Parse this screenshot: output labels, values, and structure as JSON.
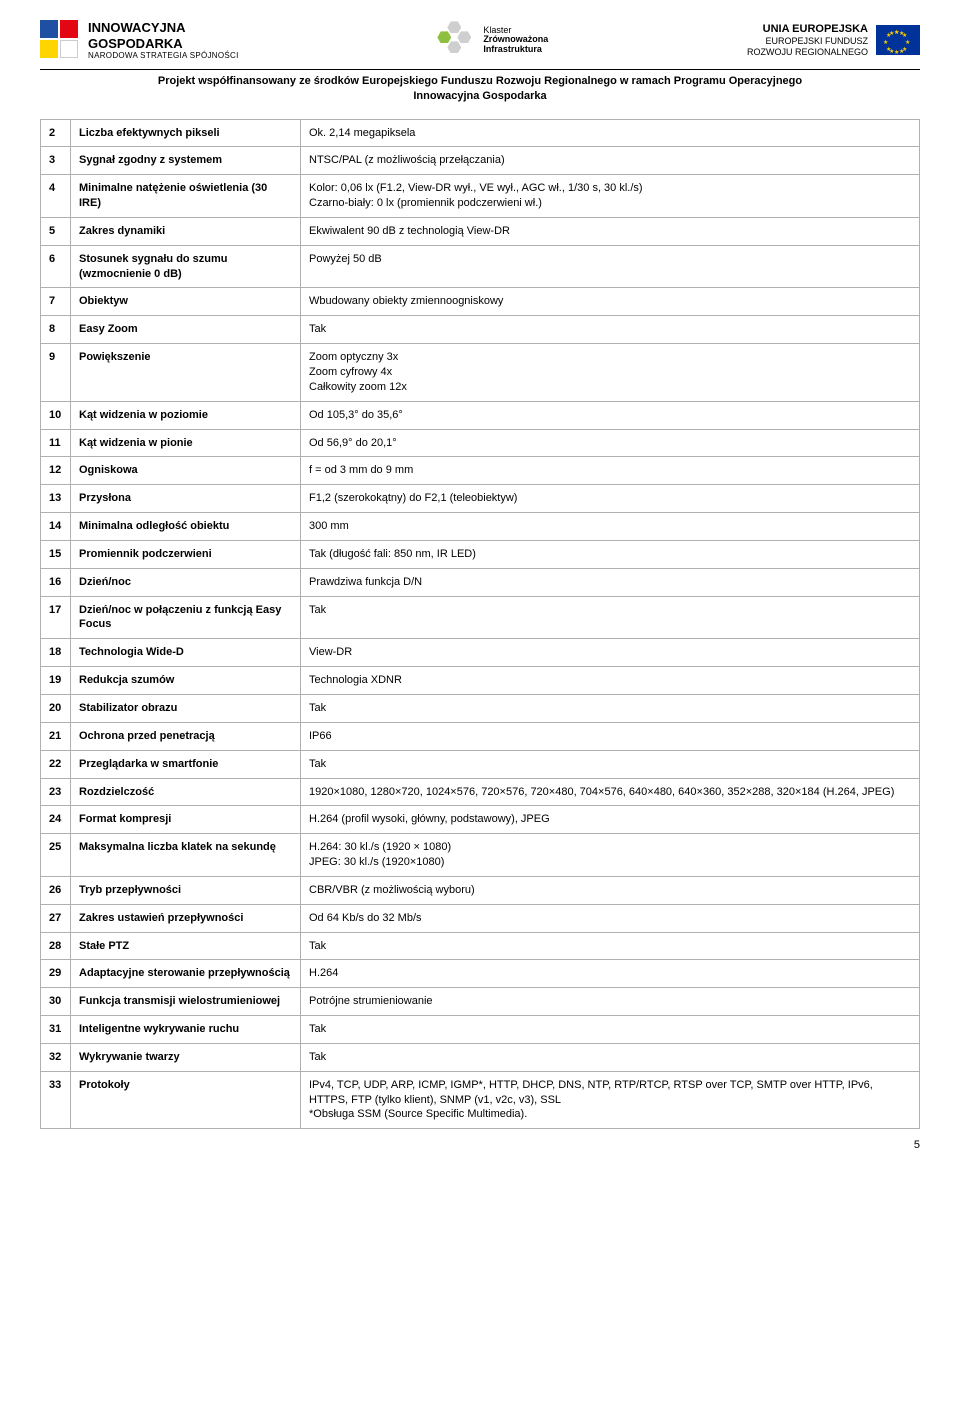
{
  "header": {
    "left": {
      "line1": "INNOWACYJNA",
      "line2": "GOSPODARKA",
      "line3": "NARODOWA STRATEGIA SPÓJNOŚCI"
    },
    "center": {
      "l1": "Klaster",
      "l2": "Zrównoważona",
      "l3": "Infrastruktura"
    },
    "right": {
      "line1": "UNIA EUROPEJSKA",
      "line2": "EUROPEJSKI FUNDUSZ",
      "line3": "ROZWOJU REGIONALNEGO"
    },
    "project_line1": "Projekt współfinansowany ze środków Europejskiego Funduszu Rozwoju Regionalnego w ramach Programu Operacyjnego",
    "project_line2": "Innowacyjna Gospodarka"
  },
  "rows": [
    {
      "n": "2",
      "param": "Liczba efektywnych pikseli",
      "val": "Ok. 2,14 megapiksela"
    },
    {
      "n": "3",
      "param": "Sygnał zgodny z systemem",
      "val": "NTSC/PAL (z możliwością przełączania)"
    },
    {
      "n": "4",
      "param": "Minimalne natężenie oświetlenia (30 IRE)",
      "val": "Kolor: 0,06 lx (F1.2, View-DR wył., VE wył., AGC wł., 1/30 s, 30 kl./s)\nCzarno-biały: 0 lx (promiennik podczerwieni wł.)"
    },
    {
      "n": "5",
      "param": "Zakres dynamiki",
      "val": "Ekwiwalent 90 dB z technologią View-DR"
    },
    {
      "n": "6",
      "param": "Stosunek sygnału do szumu (wzmocnienie 0 dB)",
      "val": "Powyżej 50 dB"
    },
    {
      "n": "7",
      "param": "Obiektyw",
      "val": "Wbudowany obiekty zmiennoogniskowy"
    },
    {
      "n": "8",
      "param": "Easy Zoom",
      "val": "Tak"
    },
    {
      "n": "9",
      "param": "Powiększenie",
      "val": "Zoom optyczny 3x\nZoom cyfrowy 4x\nCałkowity zoom 12x"
    },
    {
      "n": "10",
      "param": "Kąt widzenia w poziomie",
      "val": "Od 105,3° do 35,6°"
    },
    {
      "n": "11",
      "param": "Kąt widzenia w pionie",
      "val": "Od 56,9° do 20,1°"
    },
    {
      "n": "12",
      "param": "Ogniskowa",
      "val": "f = od 3 mm do 9 mm"
    },
    {
      "n": "13",
      "param": "Przysłona",
      "val": "F1,2 (szerokokątny) do F2,1 (teleobiektyw)"
    },
    {
      "n": "14",
      "param": "Minimalna odległość obiektu",
      "val": "300 mm"
    },
    {
      "n": "15",
      "param": "Promiennik podczerwieni",
      "val": "Tak (długość fali: 850 nm, IR LED)"
    },
    {
      "n": "16",
      "param": "Dzień/noc",
      "val": "Prawdziwa funkcja D/N"
    },
    {
      "n": "17",
      "param": "Dzień/noc w połączeniu z funkcją Easy Focus",
      "val": "Tak"
    },
    {
      "n": "18",
      "param": "Technologia Wide-D",
      "val": "View-DR"
    },
    {
      "n": "19",
      "param": "Redukcja szumów",
      "val": "Technologia XDNR"
    },
    {
      "n": "20",
      "param": "Stabilizator obrazu",
      "val": "Tak"
    },
    {
      "n": "21",
      "param": "Ochrona przed penetracją",
      "val": "IP66"
    },
    {
      "n": "22",
      "param": "Przeglądarka w smartfonie",
      "val": "Tak"
    },
    {
      "n": "23",
      "param": "Rozdzielczość",
      "val": "1920×1080, 1280×720, 1024×576, 720×576, 720×480, 704×576, 640×480, 640×360, 352×288, 320×184 (H.264, JPEG)"
    },
    {
      "n": "24",
      "param": "Format kompresji",
      "val": "H.264 (profil wysoki, główny, podstawowy), JPEG"
    },
    {
      "n": "25",
      "param": "Maksymalna liczba klatek na sekundę",
      "val": "H.264: 30 kl./s (1920 × 1080)\nJPEG: 30 kl./s (1920×1080)"
    },
    {
      "n": "26",
      "param": "Tryb przepływności",
      "val": "CBR/VBR (z możliwością wyboru)"
    },
    {
      "n": "27",
      "param": "Zakres ustawień przepływności",
      "val": "Od 64 Kb/s do 32 Mb/s"
    },
    {
      "n": "28",
      "param": "Stałe PTZ",
      "val": "Tak"
    },
    {
      "n": "29",
      "param": "Adaptacyjne sterowanie przepływnością",
      "val": "H.264"
    },
    {
      "n": "30",
      "param": "Funkcja transmisji wielostrumieniowej",
      "val": "Potrójne strumieniowanie"
    },
    {
      "n": "31",
      "param": "Inteligentne wykrywanie ruchu",
      "val": "Tak"
    },
    {
      "n": "32",
      "param": "Wykrywanie twarzy",
      "val": "Tak"
    },
    {
      "n": "33",
      "param": "Protokoły",
      "val": "IPv4, TCP, UDP, ARP, ICMP, IGMP*, HTTP, DHCP, DNS, NTP, RTP/RTCP, RTSP over TCP, SMTP over HTTP, IPv6, HTTPS, FTP (tylko klient), SNMP (v1, v2c, v3), SSL\n*Obsługa SSM (Source Specific Multimedia)."
    }
  ],
  "page_number": "5"
}
